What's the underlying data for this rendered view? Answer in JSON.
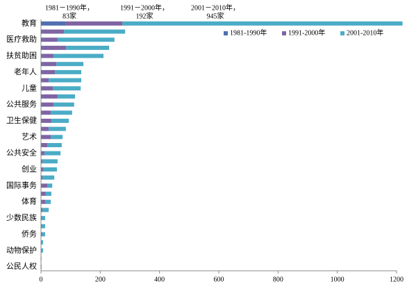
{
  "chart_data": {
    "type": "stacked_barh",
    "categories": [
      "教育",
      null,
      "医疗救助",
      null,
      "扶贫助困",
      null,
      "老年人",
      null,
      "儿童",
      null,
      "公共服务",
      null,
      "卫生保健",
      null,
      "艺术",
      null,
      "公共安全",
      null,
      "创业",
      null,
      "国际事务",
      null,
      "体育",
      null,
      "少数民族",
      null,
      "侨务",
      null,
      "动物保护",
      null,
      "公民人权"
    ],
    "series": [
      {
        "name": "1981-1990年",
        "color": "#4f6fb0",
        "values": [
          83,
          5,
          5,
          5,
          4,
          5,
          5,
          4,
          4,
          5,
          4,
          4,
          4,
          4,
          4,
          3,
          3,
          2,
          2,
          2,
          3,
          3,
          3,
          1,
          1,
          1,
          1,
          0,
          0,
          0,
          0
        ]
      },
      {
        "name": "1991-2000年",
        "color": "#8064a2",
        "values": [
          192,
          73,
          51,
          80,
          38,
          47,
          42,
          22,
          36,
          51,
          38,
          29,
          31,
          22,
          29,
          18,
          9,
          3,
          5,
          3,
          18,
          13,
          11,
          4,
          2,
          2,
          3,
          1,
          1,
          0,
          1
        ]
      },
      {
        "name": "2001-2010年",
        "color": "#4bacc6",
        "values": [
          945,
          206,
          192,
          145,
          169,
          91,
          89,
          110,
          94,
          59,
          70,
          72,
          59,
          58,
          40,
          49,
          54,
          51,
          47,
          40,
          17,
          19,
          19,
          21,
          11,
          11,
          10,
          6,
          6,
          2,
          1
        ]
      }
    ],
    "annotations": [
      [
        "1981－1990年，",
        "83家"
      ],
      [
        "1991－2000年，",
        "192家"
      ],
      [
        "2001－2010年，",
        "945家"
      ]
    ],
    "xlim": [
      0,
      1200
    ],
    "xticks": [
      0,
      200,
      400,
      600,
      800,
      1000,
      1200
    ],
    "legend": "upper right"
  }
}
